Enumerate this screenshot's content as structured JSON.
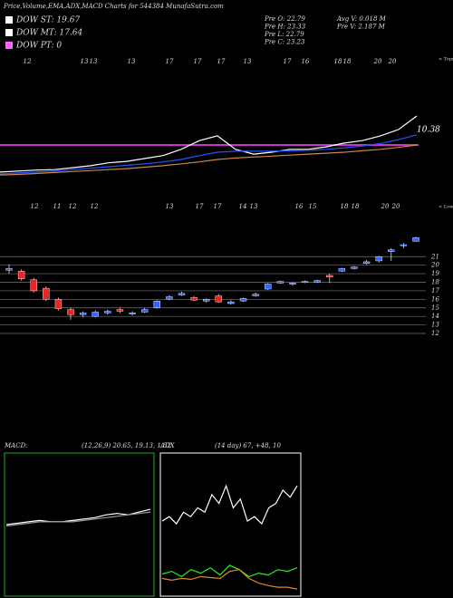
{
  "header": {
    "title": "Price,Volume,EMA,ADX,MACD Charts for 544384 MunafaSutra.com",
    "legend": [
      {
        "text": "DOW ST: 19.67",
        "color": "#ffffff"
      },
      {
        "text": "DOW MT: 17.64",
        "color": "#ffffff"
      },
      {
        "text": "DOW PT: 0",
        "color": "#ff66ff"
      }
    ],
    "info_left": [
      "Pre  O: 22.79",
      "Pre  H: 23.33",
      "Pre  L: 22.79",
      "Pre  C: 23.23"
    ],
    "info_right": [
      "Avg V: 0.018  M",
      "Pre  V: 2.187  M"
    ]
  },
  "chart_data": [
    {
      "type": "line",
      "top_labels": [
        "12",
        "13",
        "13",
        "13",
        "17",
        "17",
        "17",
        "13",
        "17",
        "16",
        "18",
        "18",
        "20",
        "20"
      ],
      "top_note": "< Tops",
      "annotation": "10.38",
      "ylim": [
        10,
        25
      ],
      "level": 17.5,
      "level_color": "#cc33cc",
      "series": [
        {
          "name": "Price",
          "color": "#ffffff",
          "values": [
            11.9,
            12.1,
            12.3,
            12.4,
            12.8,
            13.2,
            13.8,
            14.1,
            14.7,
            15.3,
            16.6,
            18.4,
            19.4,
            16.6,
            15.6,
            16,
            16.6,
            16.6,
            17.1,
            17.9,
            18.4,
            19.4,
            20.7,
            23.5
          ]
        },
        {
          "name": "EMA short",
          "color": "#2255ff",
          "values": [
            11.5,
            11.7,
            11.9,
            12.1,
            12.4,
            12.7,
            13,
            13.3,
            13.6,
            14,
            14.5,
            15.3,
            16,
            16.2,
            16.2,
            16.2,
            16.3,
            16.4,
            16.6,
            16.9,
            17.3,
            17.8,
            18.6,
            19.6
          ]
        },
        {
          "name": "EMA long",
          "color": "#cc8844",
          "values": [
            11.3,
            11.4,
            11.6,
            11.8,
            12,
            12.2,
            12.4,
            12.6,
            12.9,
            13.2,
            13.6,
            14,
            14.5,
            14.8,
            15,
            15.2,
            15.4,
            15.6,
            15.8,
            16,
            16.3,
            16.6,
            17,
            17.5
          ]
        }
      ]
    },
    {
      "type": "candlestick",
      "low_labels": [
        "12",
        "11",
        "12",
        "12",
        "13",
        "17",
        "17",
        "14",
        "13",
        "16",
        "15",
        "18",
        "18",
        "20",
        "20"
      ],
      "low_note": "< Lows",
      "ylim": [
        12,
        24
      ],
      "yticks": [
        12,
        13,
        14,
        15,
        16,
        17,
        18,
        19,
        20,
        21
      ],
      "up_color": "#3366ff",
      "down_color": "#ee2222",
      "open": [
        19.4,
        19.3,
        18.3,
        17.3,
        16.0,
        14.8,
        14.2,
        14.0,
        14.4,
        14.8,
        14.3,
        14.5,
        15.0,
        16.0,
        16.5,
        16.2,
        15.8,
        16.4,
        15.5,
        15.8,
        16.4,
        17.2,
        17.9,
        17.8,
        18.0,
        18.0,
        18.8,
        19.3,
        19.6,
        20.2,
        20.5,
        21.6,
        22.3,
        22.79
      ],
      "high": [
        20.1,
        19.5,
        18.5,
        17.5,
        16.2,
        15.0,
        14.6,
        14.7,
        14.8,
        15.0,
        14.6,
        15.0,
        15.9,
        16.5,
        16.9,
        16.4,
        16.1,
        16.6,
        15.9,
        16.2,
        16.8,
        17.9,
        18.2,
        18.0,
        18.2,
        18.3,
        19.0,
        19.7,
        19.9,
        20.6,
        21.1,
        22.0,
        22.6,
        23.33
      ],
      "low": [
        19.0,
        18.2,
        16.8,
        15.8,
        14.7,
        13.6,
        13.9,
        13.9,
        14.2,
        14.4,
        14.1,
        14.4,
        14.9,
        15.9,
        16.4,
        15.8,
        15.6,
        15.6,
        15.4,
        15.7,
        16.3,
        17.1,
        17.8,
        17.6,
        17.9,
        17.9,
        17.9,
        19.2,
        19.5,
        20.1,
        20.3,
        20.5,
        22.0,
        22.79
      ],
      "close": [
        19.6,
        18.4,
        17.0,
        16.0,
        14.9,
        14.2,
        14.4,
        14.5,
        14.6,
        14.6,
        14.4,
        14.8,
        15.8,
        16.3,
        16.7,
        15.9,
        16.0,
        15.7,
        15.7,
        16.1,
        16.6,
        17.8,
        18.1,
        17.9,
        18.1,
        18.2,
        18.6,
        19.6,
        19.8,
        20.4,
        21.0,
        21.8,
        22.4,
        23.23
      ]
    },
    {
      "type": "line",
      "label": "MACD:",
      "params": "(12,26,9) 20.65, 19.13, 1.52",
      "ylim": [
        0,
        100
      ],
      "frame_color": "#22aa22",
      "series": [
        {
          "name": "MACD",
          "color": "#ffffff",
          "values": [
            50,
            51,
            52,
            53,
            52,
            52,
            53,
            54,
            55,
            57,
            58,
            57,
            59,
            61
          ]
        },
        {
          "name": "Signal",
          "color": "#999999",
          "values": [
            49,
            50,
            51,
            52,
            52,
            52,
            52,
            53,
            54,
            55,
            56,
            57,
            58,
            59
          ]
        }
      ]
    },
    {
      "type": "line",
      "label": "ADX",
      "params": "(14 day) 67, +48, 10",
      "ylim": [
        0,
        100
      ],
      "frame_color": "#ffffff",
      "series": [
        {
          "name": "ADX",
          "color": "#ffffff",
          "values": [
            52.5,
            55.7,
            50.6,
            58.9,
            55.7,
            62,
            58.9,
            71.5,
            65.2,
            77.8,
            62,
            68.4,
            52.5,
            55.7,
            50.6,
            62,
            65.2,
            74.7,
            69.6,
            77.8
          ]
        },
        {
          "name": "+DI",
          "color": "#22ee22",
          "values": [
            14.6,
            16.5,
            12.7,
            17.7,
            15.2,
            19,
            13.9,
            20.9,
            17.7,
            12.7,
            15.2,
            13.9,
            17.7,
            16.5,
            19
          ]
        },
        {
          "name": "-DI",
          "color": "#dd8822",
          "values": [
            11.4,
            10.1,
            11.4,
            10.8,
            12.7,
            12,
            11.4,
            16.5,
            17.7,
            11.4,
            8.2,
            6.3,
            5.1,
            5.1,
            3.8
          ]
        }
      ]
    }
  ]
}
